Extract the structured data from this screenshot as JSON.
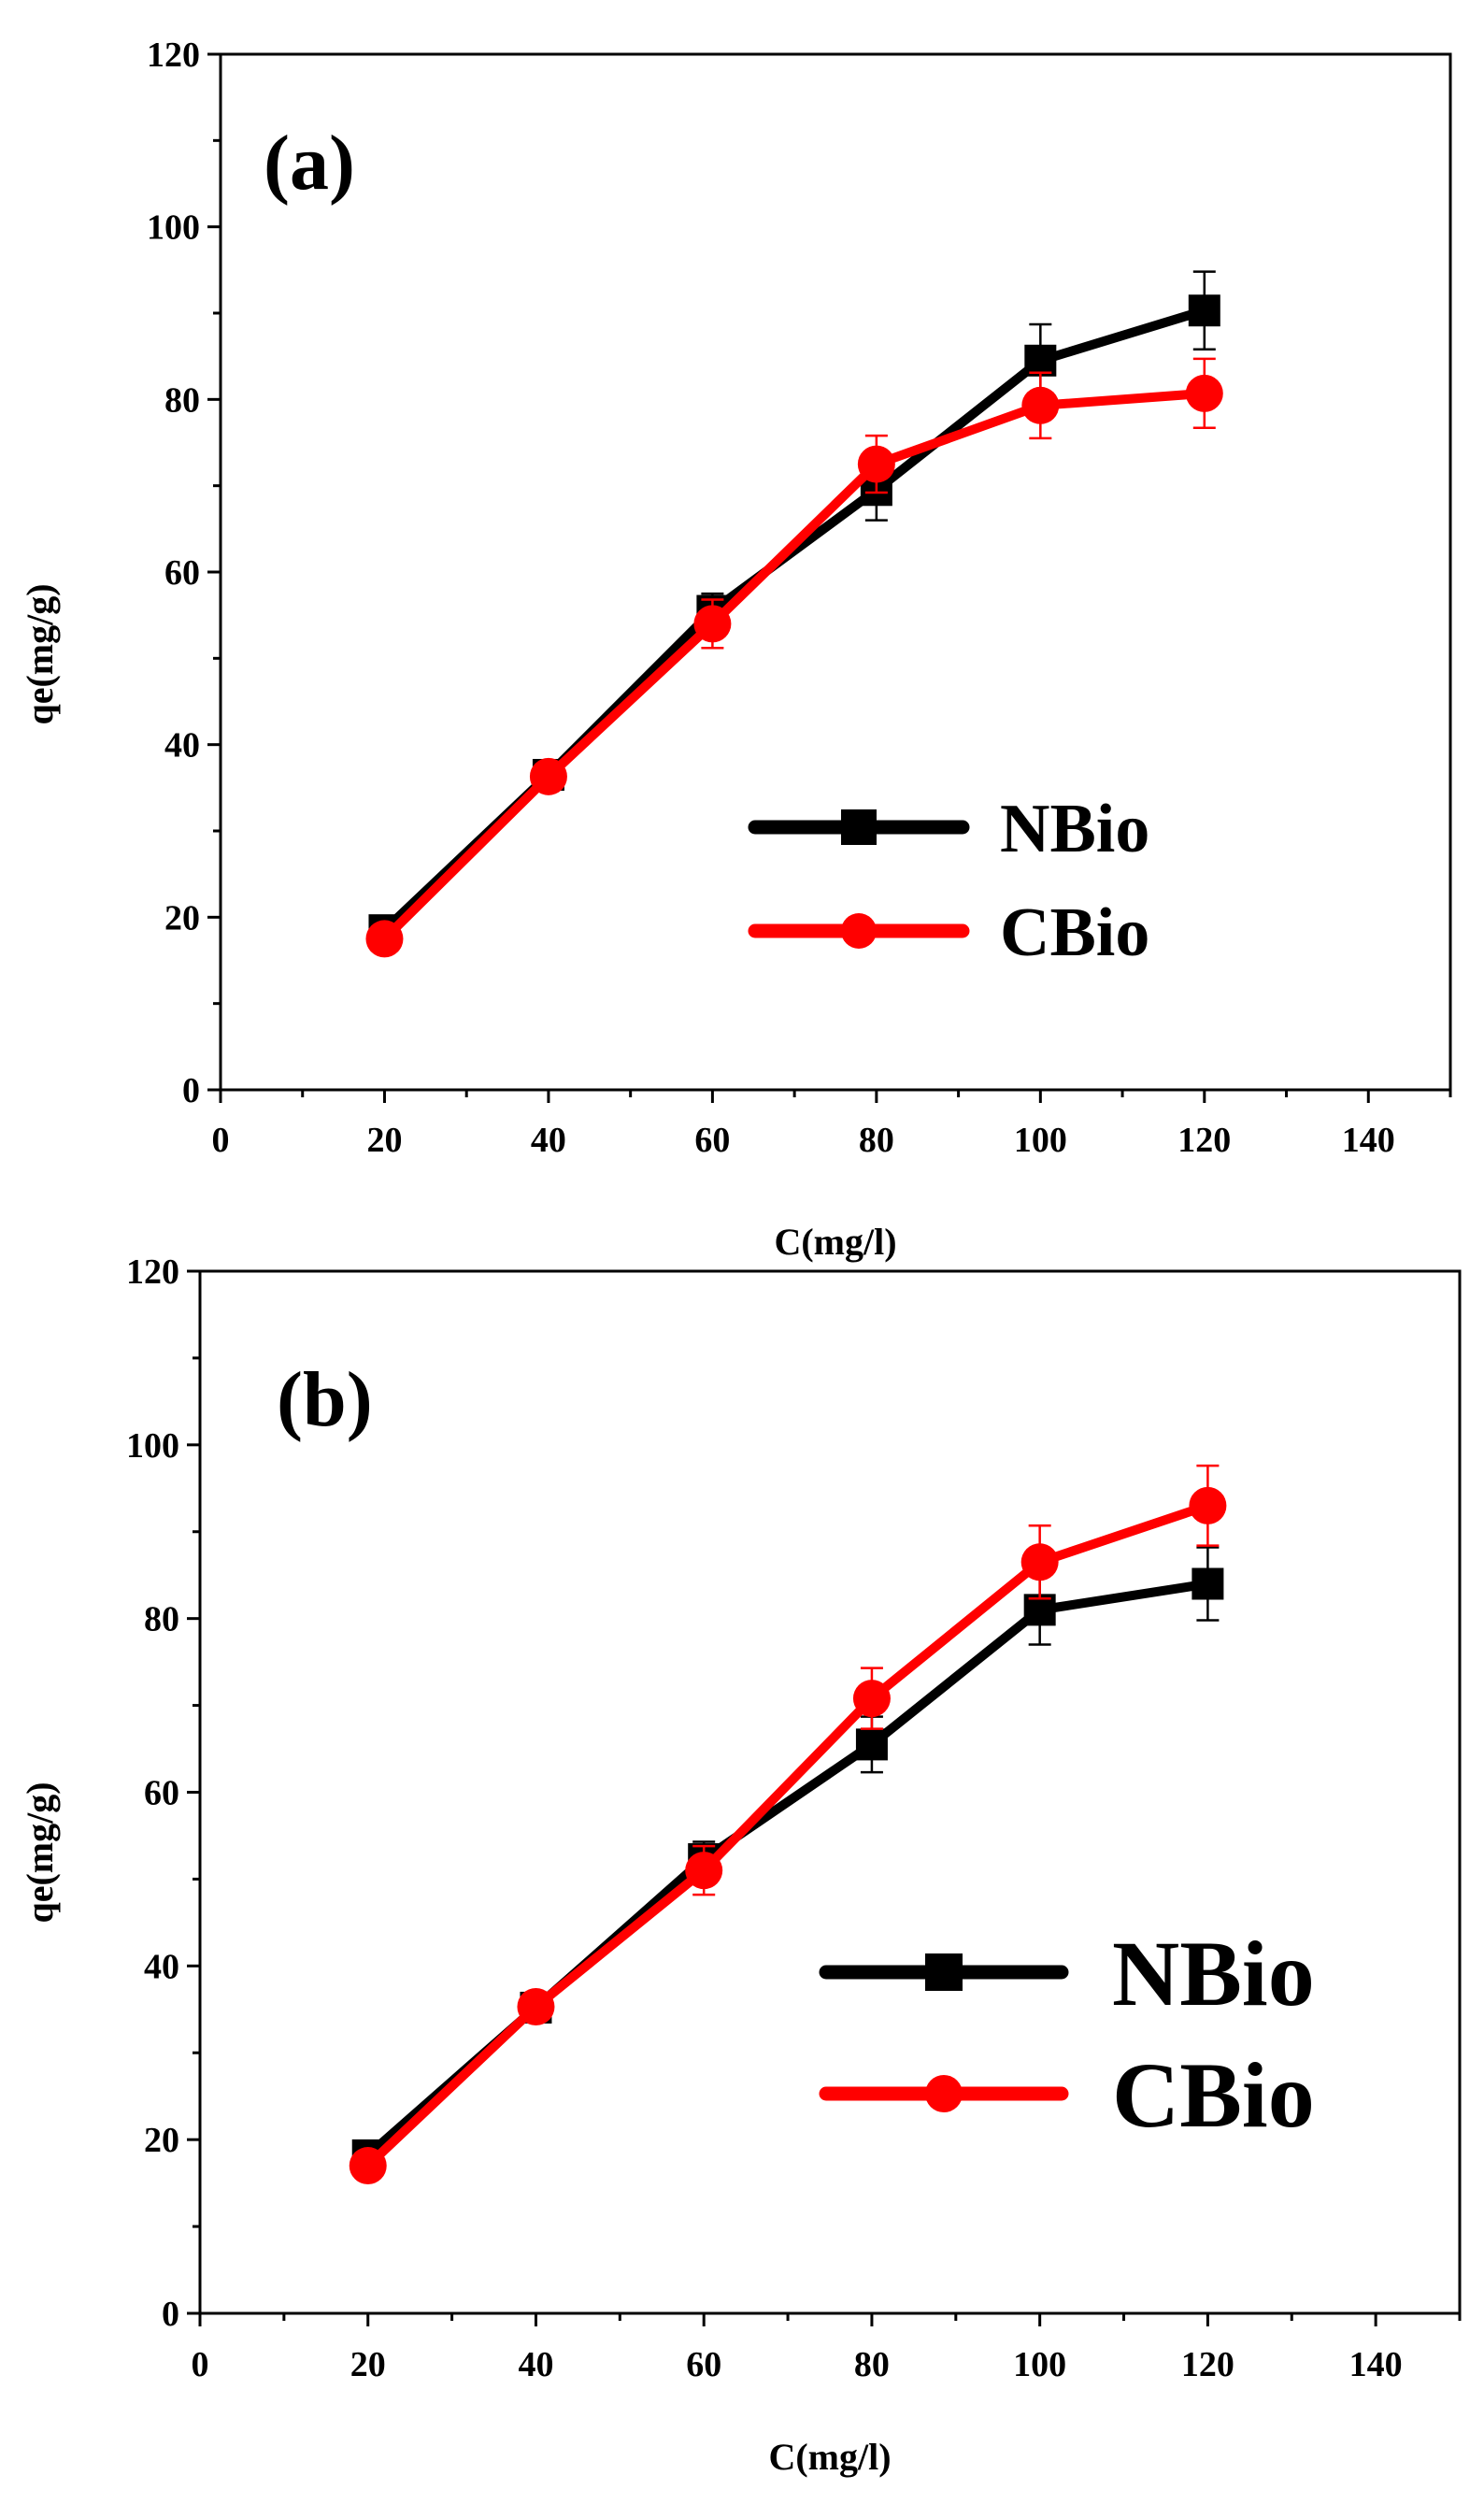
{
  "chart_data": [
    {
      "type": "line",
      "panel_label": "(a)",
      "title": "",
      "xlabel": "C(mg/l)",
      "ylabel": "qe(mg/g)",
      "xlim": [
        0,
        150
      ],
      "ylim": [
        0,
        120
      ],
      "x_ticks": [
        0,
        20,
        40,
        60,
        80,
        100,
        120,
        140
      ],
      "y_ticks": [
        0,
        20,
        40,
        60,
        80,
        100,
        120
      ],
      "legend_position": "lower-right",
      "series": [
        {
          "name": "NBio",
          "color": "#000000",
          "marker": "square",
          "x": [
            20,
            40,
            60,
            80,
            100,
            120
          ],
          "y": [
            18.5,
            36.5,
            55.5,
            69.5,
            84.5,
            90.3
          ],
          "error": [
            1.0,
            1.5,
            2.0,
            3.5,
            4.2,
            4.5
          ]
        },
        {
          "name": "CBio",
          "color": "#ff0000",
          "marker": "circle",
          "x": [
            20,
            40,
            60,
            80,
            100,
            120
          ],
          "y": [
            17.5,
            36.3,
            54.0,
            72.5,
            79.3,
            80.7
          ],
          "error": [
            1.0,
            1.5,
            2.8,
            3.3,
            3.8,
            4.0
          ]
        }
      ]
    },
    {
      "type": "line",
      "panel_label": "(b)",
      "title": "",
      "xlabel": "C(mg/l)",
      "ylabel": "qe(mg/g)",
      "xlim": [
        0,
        150
      ],
      "ylim": [
        0,
        120
      ],
      "x_ticks": [
        0,
        20,
        40,
        60,
        80,
        100,
        120,
        140
      ],
      "y_ticks": [
        0,
        20,
        40,
        60,
        80,
        100,
        120
      ],
      "legend_position": "lower-right",
      "series": [
        {
          "name": "NBio",
          "color": "#000000",
          "marker": "square",
          "x": [
            20,
            40,
            60,
            80,
            100,
            120
          ],
          "y": [
            18.2,
            35.2,
            52.3,
            65.5,
            81.0,
            84.0
          ],
          "error": [
            1.0,
            1.5,
            2.0,
            3.2,
            4.0,
            4.2
          ]
        },
        {
          "name": "CBio",
          "color": "#ff0000",
          "marker": "circle",
          "x": [
            20,
            40,
            60,
            80,
            100,
            120
          ],
          "y": [
            17.0,
            35.3,
            51.0,
            70.8,
            86.5,
            93.0
          ],
          "error": [
            1.0,
            1.5,
            2.8,
            3.5,
            4.2,
            4.6
          ]
        }
      ]
    }
  ]
}
